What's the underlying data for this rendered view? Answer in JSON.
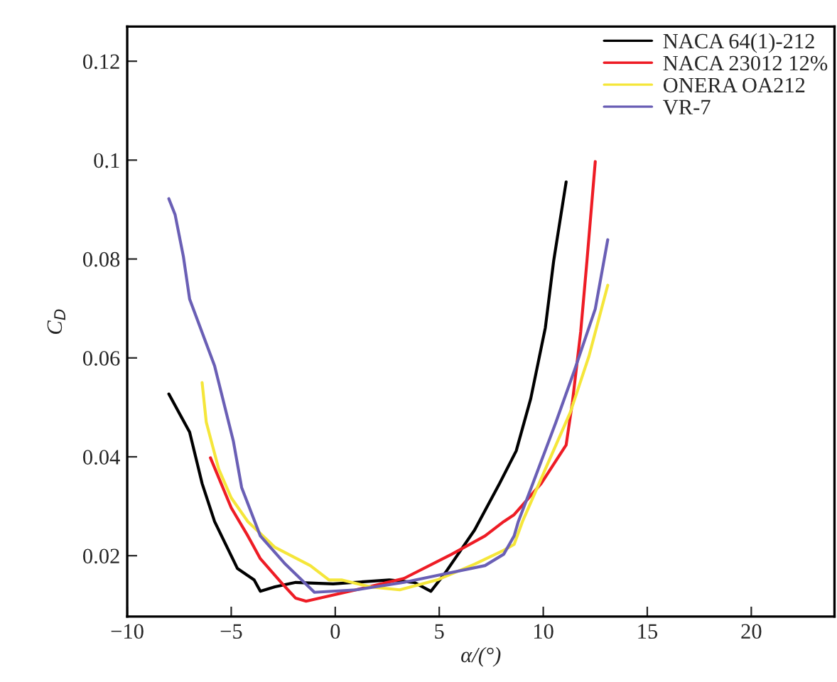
{
  "chart_data": {
    "type": "line",
    "xlabel": "α/(°)",
    "ylabel": "C$_{D}$",
    "xlim": [
      -10,
      24
    ],
    "ylim": [
      0.0077,
      0.127
    ],
    "xticks": [
      {
        "value": -10,
        "label": "−10"
      },
      {
        "value": -5,
        "label": "−5"
      },
      0,
      5,
      10,
      15,
      20
    ],
    "yticks": [
      0.02,
      0.04,
      0.06,
      0.08,
      0.1,
      0.12
    ],
    "grid": false,
    "legend": "top right",
    "marker": "none",
    "line_style": "solid",
    "series": [
      {
        "name": "NACA 64(1)-212",
        "color": "#000000",
        "x": [
          -8.0,
          -7.0,
          -6.4,
          -5.8,
          -4.7,
          -3.9,
          -3.6,
          -2.9,
          -1.9,
          -0.1,
          2.6,
          3.8,
          4.6,
          5.3,
          6.7,
          7.9,
          8.7,
          9.4,
          10.1,
          10.5,
          11.1
        ],
        "values": [
          0.0527,
          0.045,
          0.0346,
          0.0269,
          0.0174,
          0.0151,
          0.0128,
          0.0137,
          0.0146,
          0.0143,
          0.0151,
          0.0146,
          0.0128,
          0.0166,
          0.0252,
          0.0346,
          0.0412,
          0.0518,
          0.0661,
          0.0796,
          0.0956
        ]
      },
      {
        "name": "NACA 23012 12%",
        "color": "#ee1c25",
        "x": [
          -6.0,
          -5.0,
          -4.2,
          -3.6,
          -2.6,
          -1.9,
          -1.4,
          1.0,
          3.3,
          5.6,
          7.2,
          8.1,
          8.6,
          9.2,
          9.9,
          11.1,
          11.4,
          11.8,
          12.1,
          12.5
        ],
        "values": [
          0.0398,
          0.0297,
          0.024,
          0.0194,
          0.0146,
          0.0114,
          0.0108,
          0.0131,
          0.0154,
          0.0203,
          0.024,
          0.0269,
          0.0283,
          0.0312,
          0.0346,
          0.0424,
          0.051,
          0.0653,
          0.0796,
          0.0997
        ]
      },
      {
        "name": "ONERA OA212",
        "color": "#f5e63a",
        "x": [
          -6.4,
          -6.2,
          -5.6,
          -5.0,
          -4.2,
          -2.9,
          -1.2,
          -0.3,
          0.3,
          1.7,
          3.1,
          4.9,
          6.7,
          8.1,
          8.6,
          9.0,
          10.1,
          11.3,
          12.2,
          13.1
        ],
        "values": [
          0.055,
          0.047,
          0.0375,
          0.0317,
          0.0269,
          0.0217,
          0.018,
          0.0151,
          0.0151,
          0.0137,
          0.0131,
          0.0151,
          0.0183,
          0.0211,
          0.0223,
          0.0269,
          0.0375,
          0.049,
          0.0604,
          0.0747
        ]
      },
      {
        "name": "VR-7",
        "color": "#6a5fb5",
        "x": [
          -8.0,
          -7.7,
          -7.3,
          -7.0,
          -5.8,
          -4.9,
          -4.5,
          -3.6,
          -2.4,
          -1.0,
          1.0,
          3.3,
          4.9,
          7.2,
          8.1,
          8.6,
          8.8,
          9.5,
          10.6,
          11.5,
          12.5,
          13.1
        ],
        "values": [
          0.0922,
          0.089,
          0.0805,
          0.0719,
          0.0584,
          0.0432,
          0.0338,
          0.024,
          0.0183,
          0.0126,
          0.0131,
          0.0146,
          0.016,
          0.018,
          0.0203,
          0.024,
          0.0269,
          0.0346,
          0.0469,
          0.0575,
          0.0699,
          0.0839
        ]
      }
    ]
  }
}
